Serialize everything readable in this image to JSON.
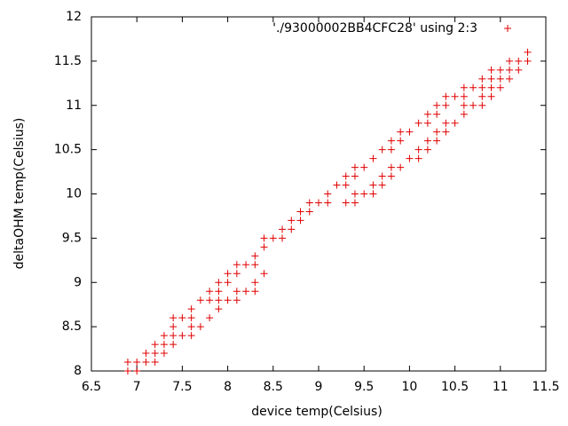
{
  "chart_data": {
    "type": "scatter",
    "xlabel": "device temp(Celsius)",
    "ylabel": "deltaOHM temp(Celsius)",
    "xlim": [
      6.5,
      11.5
    ],
    "ylim": [
      8,
      12
    ],
    "xticks": [
      6.5,
      7,
      7.5,
      8,
      8.5,
      9,
      9.5,
      10,
      10.5,
      11,
      11.5
    ],
    "yticks": [
      8,
      8.5,
      9,
      9.5,
      10,
      10.5,
      11,
      11.5,
      12
    ],
    "legend": "top-right",
    "series": [
      {
        "name": "'./93000002BB4CFC28' using 2:3",
        "color": "#e00000",
        "x": [
          6.9,
          7,
          6.9,
          7,
          7.1,
          7.2,
          7.1,
          7.2,
          7.3,
          7.2,
          7.3,
          7.4,
          7.3,
          7.4,
          7.5,
          7.6,
          7.4,
          7.6,
          7.7,
          7.4,
          7.5,
          7.6,
          7.8,
          7.6,
          7.9,
          7.7,
          7.8,
          7.9,
          8,
          8.1,
          7.8,
          7.9,
          8.1,
          8.2,
          8.3,
          7.9,
          8,
          8.3,
          8,
          8.1,
          8.4,
          8.1,
          8.2,
          8.3,
          8.3,
          8.4,
          8.4,
          8.5,
          8.6,
          8.6,
          8.7,
          8.7,
          8.8,
          8.8,
          8.9,
          8.9,
          9,
          9.1,
          9.3,
          9.4,
          9.1,
          9.4,
          9.5,
          9.6,
          9.2,
          9.3,
          9.6,
          9.7,
          9.3,
          9.4,
          9.7,
          9.8,
          9.4,
          9.5,
          9.8,
          9.9,
          9.6,
          10,
          10.1,
          9.7,
          9.8,
          10.1,
          10.2,
          9.8,
          9.9,
          10.2,
          10.3,
          9.9,
          10,
          10.3,
          10.4,
          10.1,
          10.2,
          10.4,
          10.5,
          10.2,
          10.3,
          10.6,
          10.3,
          10.4,
          10.6,
          10.7,
          10.8,
          10.4,
          10.5,
          10.6,
          10.8,
          10.9,
          10.6,
          10.7,
          10.8,
          10.9,
          11,
          10.8,
          10.9,
          11,
          11.1,
          10.9,
          11,
          11.1,
          11.2,
          11.1,
          11.2,
          11.3,
          11.3
        ],
        "values": [
          8,
          8,
          8.1,
          8.1,
          8.1,
          8.1,
          8.2,
          8.2,
          8.2,
          8.3,
          8.3,
          8.3,
          8.4,
          8.4,
          8.4,
          8.4,
          8.5,
          8.5,
          8.5,
          8.6,
          8.6,
          8.6,
          8.6,
          8.7,
          8.7,
          8.8,
          8.8,
          8.8,
          8.8,
          8.8,
          8.9,
          8.9,
          8.9,
          8.9,
          8.9,
          9,
          9,
          9,
          9.1,
          9.1,
          9.1,
          9.2,
          9.2,
          9.2,
          9.3,
          9.4,
          9.5,
          9.5,
          9.5,
          9.6,
          9.6,
          9.7,
          9.7,
          9.8,
          9.8,
          9.9,
          9.9,
          9.9,
          9.9,
          9.9,
          10,
          10,
          10,
          10,
          10.1,
          10.1,
          10.1,
          10.1,
          10.2,
          10.2,
          10.2,
          10.2,
          10.3,
          10.3,
          10.3,
          10.3,
          10.4,
          10.4,
          10.4,
          10.5,
          10.5,
          10.5,
          10.5,
          10.6,
          10.6,
          10.6,
          10.6,
          10.7,
          10.7,
          10.7,
          10.7,
          10.8,
          10.8,
          10.8,
          10.8,
          10.9,
          10.9,
          10.9,
          11,
          11,
          11,
          11,
          11,
          11.1,
          11.1,
          11.1,
          11.1,
          11.1,
          11.2,
          11.2,
          11.2,
          11.2,
          11.2,
          11.3,
          11.3,
          11.3,
          11.3,
          11.4,
          11.4,
          11.4,
          11.4,
          11.5,
          11.5,
          11.5,
          11.6
        ]
      }
    ]
  }
}
